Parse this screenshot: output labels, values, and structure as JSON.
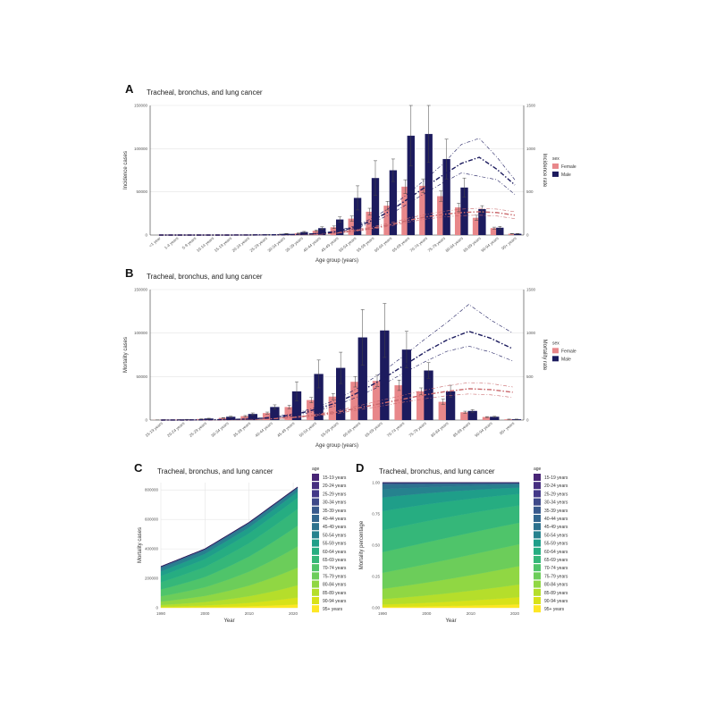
{
  "colors": {
    "female": "#e8878a",
    "male": "#1c1b5e",
    "viridis": [
      "#482576",
      "#462e80",
      "#433888",
      "#3e4989",
      "#38598c",
      "#32668e",
      "#2c728e",
      "#26828e",
      "#21908d",
      "#1f9e89",
      "#26ad81",
      "#35b779",
      "#4fc46a",
      "#6ccd5a",
      "#90d743",
      "#b5de2b",
      "#d8e219",
      "#fde725"
    ]
  },
  "chart_data": [
    {
      "panel": "A",
      "type": "bar",
      "title": "Tracheal, bronchus, and lung cancer",
      "xlabel": "Age group (years)",
      "ylabel": "Incidence cases",
      "y2label": "Incidence rate",
      "legend_title": "sex",
      "legend": [
        "Female",
        "Male"
      ],
      "ylim": [
        0,
        150000
      ],
      "yticks": [
        0,
        50000,
        100000,
        150000
      ],
      "ytick_labels": [
        "0",
        "50000",
        "100000",
        "150000"
      ],
      "y2lim": [
        0,
        1500
      ],
      "y2ticks": [
        0,
        500,
        1000,
        1500
      ],
      "categories": [
        "<1 year",
        "1-4 years",
        "5-9 years",
        "10-14 years",
        "15-19 years",
        "20-24 years",
        "25-29 years",
        "30-34 years",
        "35-39 years",
        "40-44 years",
        "45-49 years",
        "50-54 years",
        "55-59 years",
        "60-64 years",
        "65-69 years",
        "70-74 years",
        "75-79 years",
        "80-84 years",
        "85-89 years",
        "90-94 years",
        "95+ years"
      ],
      "series": [
        {
          "name": "Female",
          "values": [
            0,
            0,
            0,
            0,
            50,
            100,
            300,
            900,
            2000,
            5000,
            9000,
            19000,
            27000,
            34000,
            56000,
            57000,
            45000,
            32000,
            20000,
            8000,
            1500
          ],
          "err": [
            0,
            0,
            0,
            0,
            20,
            40,
            100,
            200,
            400,
            900,
            1500,
            3000,
            4000,
            5000,
            8000,
            8000,
            6000,
            5000,
            3000,
            1200,
            300
          ]
        },
        {
          "name": "Male",
          "values": [
            0,
            0,
            0,
            0,
            80,
            150,
            400,
            1500,
            3500,
            8000,
            18000,
            43000,
            66000,
            75000,
            115000,
            117000,
            88000,
            55000,
            30000,
            8500,
            1500
          ],
          "err": [
            0,
            0,
            0,
            0,
            30,
            60,
            150,
            300,
            700,
            1500,
            3000,
            14000,
            20000,
            13000,
            35000,
            33000,
            23000,
            11000,
            4000,
            1500,
            300
          ]
        }
      ],
      "rate_series": [
        {
          "name": "Female",
          "values": [
            0,
            0,
            0,
            0,
            0,
            1,
            2,
            3,
            6,
            12,
            25,
            50,
            80,
            120,
            170,
            210,
            240,
            260,
            270,
            260,
            230
          ],
          "lower": [
            0,
            0,
            0,
            0,
            0,
            1,
            1,
            2,
            4,
            9,
            20,
            42,
            70,
            105,
            150,
            185,
            210,
            225,
            230,
            220,
            190
          ],
          "upper": [
            0,
            0,
            0,
            0,
            0,
            1,
            2,
            4,
            8,
            16,
            32,
            60,
            95,
            140,
            195,
            240,
            275,
            300,
            310,
            300,
            270
          ]
        },
        {
          "name": "Male",
          "values": [
            0,
            0,
            0,
            0,
            0,
            1,
            2,
            4,
            8,
            18,
            40,
            90,
            170,
            280,
            420,
            560,
            700,
            830,
            900,
            760,
            580
          ],
          "lower": [
            0,
            0,
            0,
            0,
            0,
            1,
            1,
            3,
            6,
            14,
            32,
            75,
            145,
            240,
            365,
            490,
            610,
            720,
            680,
            640,
            470
          ],
          "upper": [
            0,
            0,
            0,
            0,
            0,
            1,
            3,
            5,
            10,
            22,
            48,
            105,
            195,
            320,
            480,
            650,
            830,
            1050,
            1120,
            900,
            640
          ]
        }
      ]
    },
    {
      "panel": "B",
      "type": "bar",
      "title": "Tracheal, bronchus, and lung cancer",
      "xlabel": "Age group (years)",
      "ylabel": "Mortality cases",
      "y2label": "Mortality rate",
      "legend_title": "sex",
      "legend": [
        "Female",
        "Male"
      ],
      "ylim": [
        0,
        150000
      ],
      "yticks": [
        0,
        50000,
        100000,
        150000
      ],
      "ytick_labels": [
        "0",
        "50000",
        "100000",
        "150000"
      ],
      "y2lim": [
        0,
        1500
      ],
      "y2ticks": [
        0,
        500,
        1000,
        1500
      ],
      "categories": [
        "15-19 years",
        "20-24 years",
        "25-29 years",
        "30-34 years",
        "35-39 years",
        "40-44 years",
        "45-49 years",
        "50-54 years",
        "55-59 years",
        "60-64 years",
        "65-69 years",
        "70-74 years",
        "75-79 years",
        "80-84 years",
        "85-89 years",
        "90-94 years",
        "95+ years"
      ],
      "series": [
        {
          "name": "Female",
          "values": [
            200,
            500,
            1200,
            2500,
            4500,
            8000,
            15000,
            23000,
            27000,
            44000,
            45000,
            40000,
            33000,
            21000,
            9000,
            3500,
            900
          ],
          "err": [
            50,
            100,
            200,
            400,
            700,
            1200,
            2000,
            3000,
            3500,
            6000,
            6500,
            6000,
            4000,
            3000,
            1200,
            500,
            200
          ]
        },
        {
          "name": "Male",
          "values": [
            300,
            700,
            1800,
            3800,
            7000,
            15000,
            33000,
            53000,
            60000,
            95000,
            103000,
            81000,
            57000,
            33000,
            10500,
            3800,
            900
          ],
          "err": [
            80,
            150,
            300,
            600,
            1200,
            2500,
            11000,
            16000,
            18000,
            32000,
            31000,
            21000,
            9000,
            7000,
            1500,
            500,
            200
          ]
        }
      ],
      "rate_series": [
        {
          "name": "Female",
          "values": [
            0,
            1,
            2,
            4,
            8,
            16,
            30,
            55,
            90,
            140,
            190,
            240,
            290,
            330,
            360,
            350,
            320
          ],
          "lower": [
            0,
            1,
            1,
            3,
            6,
            13,
            25,
            46,
            75,
            118,
            160,
            205,
            245,
            280,
            300,
            290,
            260
          ],
          "upper": [
            0,
            1,
            2,
            5,
            10,
            20,
            36,
            65,
            105,
            165,
            225,
            285,
            345,
            395,
            430,
            420,
            380
          ]
        },
        {
          "name": "Male",
          "values": [
            0,
            1,
            3,
            6,
            12,
            28,
            60,
            120,
            200,
            320,
            460,
            620,
            780,
            920,
            1020,
            940,
            820
          ],
          "lower": [
            0,
            1,
            2,
            4,
            9,
            22,
            48,
            100,
            170,
            275,
            395,
            535,
            670,
            790,
            850,
            780,
            680
          ],
          "upper": [
            0,
            1,
            3,
            7,
            15,
            34,
            72,
            140,
            235,
            375,
            540,
            730,
            930,
            1120,
            1330,
            1150,
            1000
          ]
        }
      ]
    },
    {
      "panel": "C",
      "type": "area",
      "title": "Tracheal, bronchus, and lung cancer",
      "xlabel": "Year",
      "ylabel": "Mortality cases",
      "legend_title": "age",
      "xlim": [
        1990,
        2021
      ],
      "xticks": [
        1990,
        2000,
        2010,
        2020
      ],
      "ylim": [
        0,
        850000
      ],
      "yticks": [
        0,
        200000,
        400000,
        600000,
        800000
      ],
      "ytick_labels": [
        "0",
        "200000",
        "400000",
        "600000",
        "800000"
      ],
      "x": [
        1990,
        2000,
        2010,
        2021
      ],
      "total": [
        280000,
        400000,
        580000,
        820000
      ],
      "legend": [
        "15-19 years",
        "20-24 years",
        "25-29 years",
        "30-34 years",
        "35-39 years",
        "40-44 years",
        "45-49 years",
        "50-54 years",
        "55-59 years",
        "60-64 years",
        "65-69 years",
        "70-74 years",
        "75-79 years",
        "80-84 years",
        "85-89 years",
        "90-94 years",
        "95+ years"
      ]
    },
    {
      "panel": "D",
      "type": "area",
      "title": "Tracheal, bronchus, and lung cancer",
      "xlabel": "Year",
      "ylabel": "Mortality percentage",
      "legend_title": "age",
      "xlim": [
        1990,
        2021
      ],
      "xticks": [
        1990,
        2000,
        2010,
        2020
      ],
      "ylim": [
        0,
        1
      ],
      "yticks": [
        0,
        0.25,
        0.5,
        0.75,
        1
      ],
      "ytick_labels": [
        "0.00",
        "0.25",
        "0.50",
        "0.75",
        "1.00"
      ],
      "x": [
        1990,
        2000,
        2010,
        2021
      ],
      "legend": [
        "15-19 years",
        "20-24 years",
        "25-29 years",
        "30-34 years",
        "35-39 years",
        "40-44 years",
        "45-49 years",
        "50-54 years",
        "55-59 years",
        "60-64 years",
        "65-69 years",
        "70-74 years",
        "75-79 years",
        "80-84 years",
        "85-89 years",
        "90-94 years",
        "95+ years"
      ]
    }
  ]
}
